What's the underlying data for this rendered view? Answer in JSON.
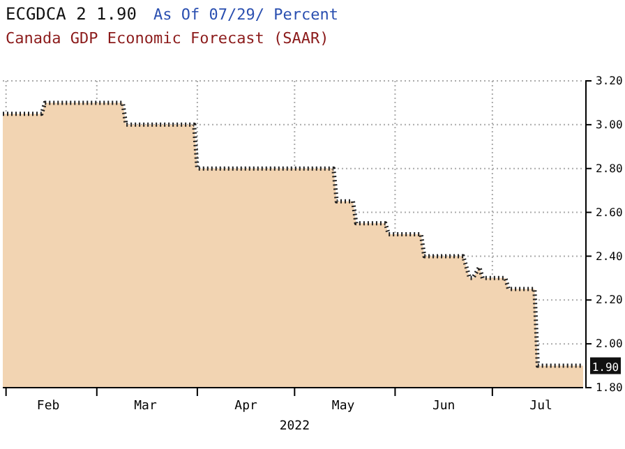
{
  "chart_data": {
    "type": "area",
    "title": "Canada GDP Economic Forecast (SAAR)",
    "xlabel": "2022",
    "annotations": [
      "ECGDCA 2   1.90",
      "As Of 07/29/ Percent",
      {
        "text": "1.90",
        "x": "2022-07-29",
        "y": 1.9
      }
    ],
    "series": [
      {
        "color": "#f2d4b2",
        "x": [
          "2022-01-31",
          "2022-02-12",
          "2022-02-13",
          "2022-03-09",
          "2022-03-10",
          "2022-03-31",
          "2022-04-01",
          "2022-05-13",
          "2022-05-14",
          "2022-05-19",
          "2022-05-20",
          "2022-05-29",
          "2022-05-30",
          "2022-06-09",
          "2022-06-10",
          "2022-06-22",
          "2022-06-24",
          "2022-06-25",
          "2022-06-27",
          "2022-06-28",
          "2022-06-29",
          "2022-07-05",
          "2022-07-06",
          "2022-07-14",
          "2022-07-15",
          "2022-07-29"
        ],
        "values": [
          3.05,
          3.05,
          3.1,
          3.1,
          3.0,
          3.0,
          2.8,
          2.8,
          2.65,
          2.65,
          2.55,
          2.55,
          2.5,
          2.5,
          2.4,
          2.4,
          2.3,
          2.3,
          2.35,
          2.3,
          2.3,
          2.3,
          2.25,
          2.25,
          1.9,
          1.9
        ]
      }
    ],
    "xlim": [
      "2022-01-31",
      "2022-07-29"
    ],
    "xticks": [
      {
        "value": "2022-02-01",
        "label": null
      },
      {
        "value": "2022-02-14",
        "label": "Feb"
      },
      {
        "value": "2022-03-01",
        "label": null
      },
      {
        "value": "2022-03-16",
        "label": "Mar"
      },
      {
        "value": "2022-04-01",
        "label": null
      },
      {
        "value": "2022-04-16",
        "label": "Apr"
      },
      {
        "value": "2022-05-01",
        "label": null
      },
      {
        "value": "2022-05-16",
        "label": "May"
      },
      {
        "value": "2022-06-01",
        "label": null
      },
      {
        "value": "2022-06-16",
        "label": "Jun"
      },
      {
        "value": "2022-07-01",
        "label": null
      },
      {
        "value": "2022-07-16",
        "label": "Jul"
      }
    ],
    "ylim": [
      1.8,
      3.2
    ],
    "yticks": [
      {
        "value": 1.8,
        "label": "1.80"
      },
      {
        "value": 2.0,
        "label": "2.00"
      },
      {
        "value": 2.2,
        "label": "2.20"
      },
      {
        "value": 2.4,
        "label": "2.40"
      },
      {
        "value": 2.6,
        "label": "2.60"
      },
      {
        "value": 2.8,
        "label": "2.80"
      },
      {
        "value": 3.0,
        "label": "3.00"
      },
      {
        "value": 3.2,
        "label": "3.20"
      }
    ],
    "grid": true,
    "line_style": "dotted"
  }
}
